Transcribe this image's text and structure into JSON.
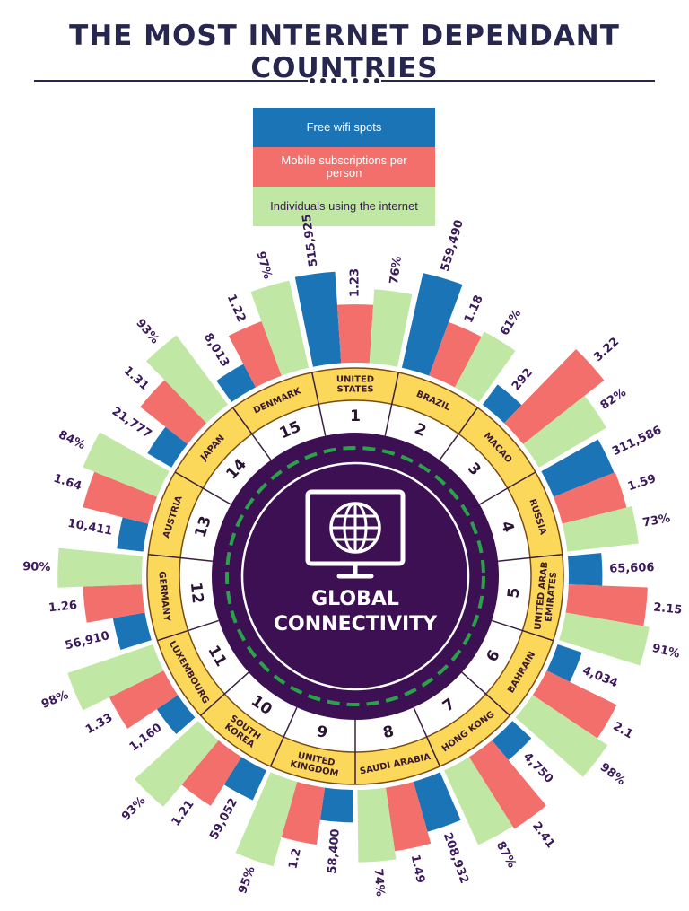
{
  "title": "THE MOST INTERNET DEPENDANT COUNTRIES",
  "legend": {
    "wifi": "Free wifi spots",
    "mobile": "Mobile subscriptions per person",
    "internet": "Individuals using the internet"
  },
  "center": {
    "line1": "GLOBAL",
    "line2": "CONNECTIVITY"
  },
  "colors": {
    "wifi": "#1a74b6",
    "mobile": "#f26f6c",
    "internet": "#c1e7a4",
    "ring": "#fcd85a",
    "center": "#3c1053",
    "dash": "#2aa24a",
    "text": "#3b1a5c"
  },
  "chart_data": {
    "type": "bar",
    "layout": "radial",
    "series": [
      {
        "name": "Free wifi spots",
        "key": "wifi"
      },
      {
        "name": "Mobile subscriptions per person",
        "key": "mobile"
      },
      {
        "name": "Individuals using the internet",
        "key": "internet"
      }
    ],
    "countries": [
      {
        "rank": "1",
        "name": "UNITED STATES",
        "lines": [
          "UNITED",
          "STATES"
        ],
        "wifi": 515925,
        "wifi_label": "515,925",
        "mobile": 1.23,
        "mobile_label": "1.23",
        "internet": 76,
        "internet_label": "76%"
      },
      {
        "rank": "2",
        "name": "BRAZIL",
        "lines": [
          "BRAZIL"
        ],
        "wifi": 559490,
        "wifi_label": "559,490",
        "mobile": 1.18,
        "mobile_label": "1.18",
        "internet": 61,
        "internet_label": "61%"
      },
      {
        "rank": "3",
        "name": "MACAO",
        "lines": [
          "MACAO"
        ],
        "wifi": 292,
        "wifi_label": "292",
        "mobile": 3.22,
        "mobile_label": "3.22",
        "internet": 82,
        "internet_label": "82%"
      },
      {
        "rank": "4",
        "name": "RUSSIA",
        "lines": [
          "RUSSIA"
        ],
        "wifi": 311586,
        "wifi_label": "311,586",
        "mobile": 1.59,
        "mobile_label": "1.59",
        "internet": 73,
        "internet_label": "73%"
      },
      {
        "rank": "5",
        "name": "UNITED ARAB EMIRATES",
        "lines": [
          "UNITED ARAB",
          "EMIRATES"
        ],
        "wifi": 65606,
        "wifi_label": "65,606",
        "mobile": 2.15,
        "mobile_label": "2.15",
        "internet": 91,
        "internet_label": "91%"
      },
      {
        "rank": "6",
        "name": "BAHRAIN",
        "lines": [
          "BAHRAIN"
        ],
        "wifi": 4034,
        "wifi_label": "4,034",
        "mobile": 2.1,
        "mobile_label": "2.1",
        "internet": 98,
        "internet_label": "98%"
      },
      {
        "rank": "7",
        "name": "HONG KONG",
        "lines": [
          "HONG KONG"
        ],
        "wifi": 4750,
        "wifi_label": "4,750",
        "mobile": 2.41,
        "mobile_label": "2.41",
        "internet": 87,
        "internet_label": "87%"
      },
      {
        "rank": "8",
        "name": "SAUDI ARABIA",
        "lines": [
          "SAUDI ARABIA"
        ],
        "wifi": 208932,
        "wifi_label": "208,932",
        "mobile": 1.49,
        "mobile_label": "1.49",
        "internet": 74,
        "internet_label": "74%"
      },
      {
        "rank": "9",
        "name": "UNITED KINGDOM",
        "lines": [
          "UNITED",
          "KINGDOM"
        ],
        "wifi": 58400,
        "wifi_label": "58,400",
        "mobile": 1.2,
        "mobile_label": "1.2",
        "internet": 95,
        "internet_label": "95%"
      },
      {
        "rank": "10",
        "name": "SOUTH KOREA",
        "lines": [
          "SOUTH",
          "KOREA"
        ],
        "wifi": 59052,
        "wifi_label": "59,052",
        "mobile": 1.21,
        "mobile_label": "1.21",
        "internet": 93,
        "internet_label": "93%"
      },
      {
        "rank": "11",
        "name": "LUXEMBOURG",
        "lines": [
          "LUXEMBOURG"
        ],
        "wifi": 1160,
        "wifi_label": "1,160",
        "mobile": 1.33,
        "mobile_label": "1.33",
        "internet": 98,
        "internet_label": "98%"
      },
      {
        "rank": "12",
        "name": "GERMANY",
        "lines": [
          "GERMANY"
        ],
        "wifi": 56910,
        "wifi_label": "56,910",
        "mobile": 1.26,
        "mobile_label": "1.26",
        "internet": 90,
        "internet_label": "90%"
      },
      {
        "rank": "13",
        "name": "AUSTRIA",
        "lines": [
          "AUSTRIA"
        ],
        "wifi": 10411,
        "wifi_label": "10,411",
        "mobile": 1.64,
        "mobile_label": "1.64",
        "internet": 84,
        "internet_label": "84%"
      },
      {
        "rank": "14",
        "name": "JAPAN",
        "lines": [
          "JAPAN"
        ],
        "wifi": 21777,
        "wifi_label": "21,777",
        "mobile": 1.31,
        "mobile_label": "1.31",
        "internet": 93,
        "internet_label": "93%"
      },
      {
        "rank": "15",
        "name": "DENMARK",
        "lines": [
          "DENMARK"
        ],
        "wifi": 8013,
        "wifi_label": "8,013",
        "mobile": 1.22,
        "mobile_label": "1.22",
        "internet": 97,
        "internet_label": "97%"
      }
    ]
  }
}
